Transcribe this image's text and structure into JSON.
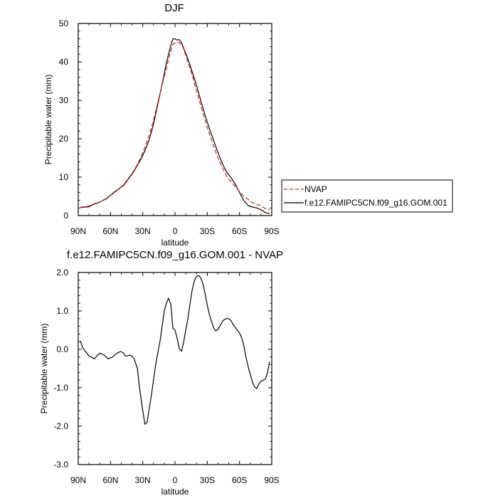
{
  "chart_data": [
    {
      "type": "line",
      "title": "DJF",
      "xlabel": "latitude",
      "ylabel": "Precipitable water (mm)",
      "xlim": [
        -90,
        90
      ],
      "ylim": [
        0,
        50
      ],
      "xticks": [
        -90,
        -60,
        -30,
        0,
        30,
        60,
        90
      ],
      "xtick_labels": [
        "90N",
        "60N",
        "30N",
        "0",
        "30S",
        "60S",
        "90S"
      ],
      "yticks": [
        0,
        10,
        20,
        30,
        40,
        50
      ],
      "ytick_labels": [
        "0",
        "10",
        "20",
        "30",
        "40",
        "50"
      ],
      "x": [
        -88,
        -84,
        -80,
        -76,
        -72,
        -68,
        -64,
        -60,
        -56,
        -52,
        -48,
        -44,
        -40,
        -36,
        -32,
        -28,
        -24,
        -20,
        -16,
        -12,
        -8,
        -4,
        -2,
        0,
        2,
        4,
        6,
        8,
        12,
        16,
        20,
        24,
        28,
        32,
        36,
        40,
        44,
        48,
        52,
        56,
        60,
        64,
        68,
        72,
        76,
        80,
        84,
        88
      ],
      "series": [
        {
          "name": "NVAP",
          "color": "#e0201b",
          "dash": "dashed",
          "values": [
            2.2,
            2.3,
            2.5,
            3.0,
            3.4,
            3.8,
            4.3,
            5.2,
            6.0,
            7.0,
            8.0,
            9.5,
            11.0,
            12.8,
            15.0,
            17.8,
            21.0,
            24.8,
            29.5,
            34.0,
            38.5,
            42.8,
            44.5,
            45.0,
            45.1,
            45.0,
            44.5,
            43.4,
            40.0,
            36.5,
            32.5,
            28.5,
            24.8,
            21.2,
            18.0,
            15.0,
            12.5,
            10.2,
            8.8,
            7.6,
            6.2,
            5.0,
            4.2,
            3.4,
            2.9,
            2.5,
            1.8,
            1.6
          ]
        },
        {
          "name": "f.e12.FAMIPC5CN.f09_g16.GOM.001",
          "color": "#000000",
          "dash": "solid",
          "values": [
            2.1,
            2.2,
            2.3,
            2.9,
            3.3,
            3.8,
            4.4,
            5.3,
            6.2,
            7.0,
            7.8,
            9.3,
            10.8,
            12.6,
            14.5,
            16.9,
            19.7,
            23.8,
            29.0,
            34.2,
            39.8,
            44.2,
            46.0,
            46.0,
            45.7,
            45.8,
            45.0,
            43.6,
            40.8,
            37.4,
            33.9,
            29.9,
            26.1,
            22.6,
            19.5,
            16.4,
            13.6,
            11.3,
            9.9,
            8.2,
            6.0,
            3.9,
            2.6,
            2.2,
            2.0,
            1.5,
            0.8,
            0.5
          ]
        }
      ],
      "legend": "right",
      "grid": false
    },
    {
      "type": "line",
      "title": "f.e12.FAMIPC5CN.f09_g16.GOM.001 - NVAP",
      "xlabel": "latitude",
      "ylabel": "Precipitable water (mm)",
      "xlim": [
        -90,
        90
      ],
      "ylim": [
        -3.0,
        2.0
      ],
      "xticks": [
        -90,
        -60,
        -30,
        0,
        30,
        60,
        90
      ],
      "xtick_labels": [
        "90N",
        "60N",
        "30N",
        "0",
        "30S",
        "60S",
        "90S"
      ],
      "yticks": [
        -3.0,
        -2.0,
        -1.0,
        0.0,
        1.0,
        2.0
      ],
      "ytick_labels": [
        "-3.0",
        "-2.0",
        "-1.0",
        "0.0",
        "1.0",
        "2.0"
      ],
      "x": [
        -88,
        -86,
        -82,
        -80,
        -78,
        -75,
        -72,
        -70,
        -68,
        -66,
        -64,
        -62,
        -60,
        -58,
        -55,
        -52,
        -50,
        -48,
        -46,
        -44,
        -42,
        -40,
        -38,
        -35,
        -33,
        -30,
        -28,
        -26,
        -24,
        -22,
        -20,
        -18,
        -16,
        -14,
        -12,
        -10,
        -8,
        -6,
        -4,
        -2,
        0,
        2,
        4,
        6,
        8,
        10,
        12,
        14,
        16,
        18,
        20,
        22,
        24,
        26,
        28,
        30,
        32,
        34,
        36,
        38,
        40,
        42,
        44,
        46,
        48,
        50,
        52,
        54,
        56,
        58,
        60,
        62,
        64,
        66,
        68,
        70,
        72,
        74,
        76,
        78,
        80,
        82,
        84,
        86,
        88
      ],
      "series": [
        {
          "name": "f.e12.FAMIPC5CN.f09_g16.GOM.001 - NVAP",
          "color": "#000000",
          "dash": "solid",
          "values": [
            0.22,
            0.05,
            -0.1,
            -0.18,
            -0.2,
            -0.25,
            -0.15,
            -0.1,
            -0.12,
            -0.15,
            -0.2,
            -0.25,
            -0.22,
            -0.2,
            -0.12,
            -0.07,
            -0.06,
            -0.1,
            -0.18,
            -0.17,
            -0.15,
            -0.18,
            -0.25,
            -0.5,
            -1.0,
            -1.6,
            -1.95,
            -1.9,
            -1.55,
            -1.2,
            -0.8,
            -0.4,
            -0.1,
            0.2,
            0.6,
            1.0,
            1.2,
            1.33,
            1.18,
            0.55,
            0.5,
            0.28,
            0.02,
            -0.05,
            0.18,
            0.5,
            0.8,
            1.2,
            1.55,
            1.78,
            1.9,
            1.92,
            1.86,
            1.7,
            1.45,
            1.15,
            0.9,
            0.72,
            0.55,
            0.48,
            0.52,
            0.62,
            0.72,
            0.78,
            0.8,
            0.8,
            0.75,
            0.65,
            0.57,
            0.5,
            0.42,
            0.3,
            0.1,
            -0.2,
            -0.45,
            -0.65,
            -0.85,
            -0.98,
            -1.02,
            -0.9,
            -0.83,
            -0.8,
            -0.78,
            -0.6,
            -0.32
          ]
        }
      ],
      "grid": false
    }
  ]
}
